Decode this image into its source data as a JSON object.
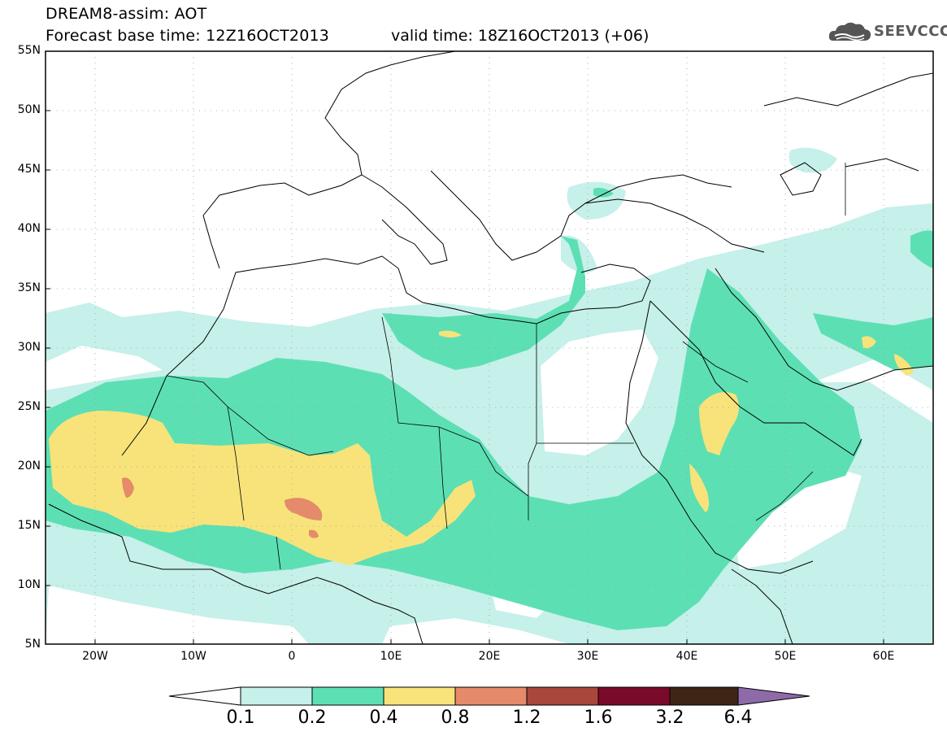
{
  "header": {
    "line1": "DREAM8-assim: AOT",
    "line2": "Forecast base time: 12Z16OCT2013",
    "valid": "valid time: 18Z16OCT2013 (+06)",
    "logo_text": "SEEVCCC"
  },
  "map": {
    "lat_labels": [
      "55N",
      "50N",
      "45N",
      "40N",
      "35N",
      "30N",
      "25N",
      "20N",
      "15N",
      "10N",
      "5N"
    ],
    "lon_labels": [
      "20W",
      "10W",
      "0",
      "10E",
      "20E",
      "30E",
      "40E",
      "50E",
      "60E"
    ],
    "lat_range": [
      5,
      55
    ],
    "lon_range": [
      -25,
      65
    ],
    "grid": "dotted",
    "field": "Aerosol Optical Thickness"
  },
  "colorbar": {
    "levels": [
      "0.1",
      "0.2",
      "0.4",
      "0.8",
      "1.2",
      "1.6",
      "3.2",
      "6.4"
    ],
    "colors": [
      "#ffffff",
      "#c6f0ea",
      "#5ddfb4",
      "#f7e37a",
      "#e58a6a",
      "#a8473b",
      "#7a0a2a",
      "#3d2615",
      "#8e6aa8"
    ]
  }
}
